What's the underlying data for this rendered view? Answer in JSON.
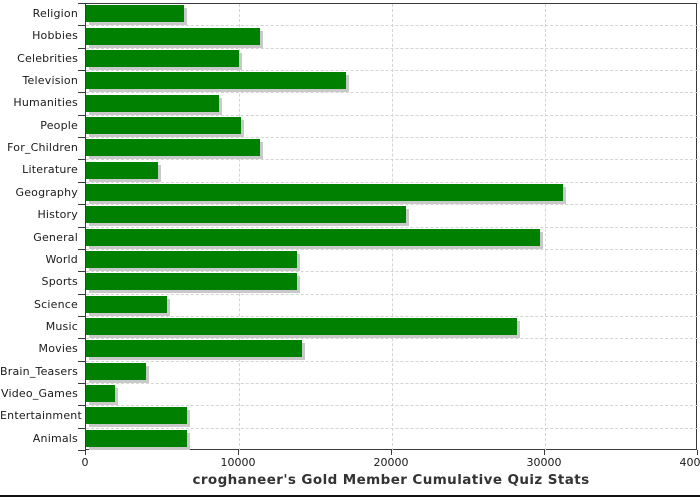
{
  "chart_data": {
    "type": "bar",
    "orientation": "horizontal",
    "title": "croghaneer's Gold Member Cumulative Quiz Stats",
    "categories": [
      "Religion",
      "Hobbies",
      "Celebrities",
      "Television",
      "Humanities",
      "People",
      "For_Children",
      "Literature",
      "Geography",
      "History",
      "General",
      "World",
      "Sports",
      "Science",
      "Music",
      "Movies",
      "Brain_Teasers",
      "Video_Games",
      "Entertainment",
      "Animals"
    ],
    "values": [
      6400,
      11400,
      10000,
      17000,
      8700,
      10100,
      11400,
      4700,
      31200,
      20900,
      29700,
      13800,
      13800,
      5300,
      28200,
      14100,
      3900,
      1900,
      6600,
      6600
    ],
    "xlabel": "",
    "ylabel": "",
    "xlim": [
      0,
      40000
    ],
    "x_ticks": [
      0,
      10000,
      20000,
      30000,
      40000
    ],
    "x_tick_labels": [
      "0",
      "10000",
      "20000",
      "30000",
      "40000"
    ],
    "grid": true,
    "legend": "none",
    "colors": {
      "bar": "#008000",
      "bar_shadow": "#c9c9c9",
      "grid": "#d4d4d4",
      "axis": "#3a3a3a",
      "tick_label": "#1a1a1a",
      "title": "#333333",
      "background": "#ffffff",
      "bottom_rule": "#111111"
    }
  }
}
